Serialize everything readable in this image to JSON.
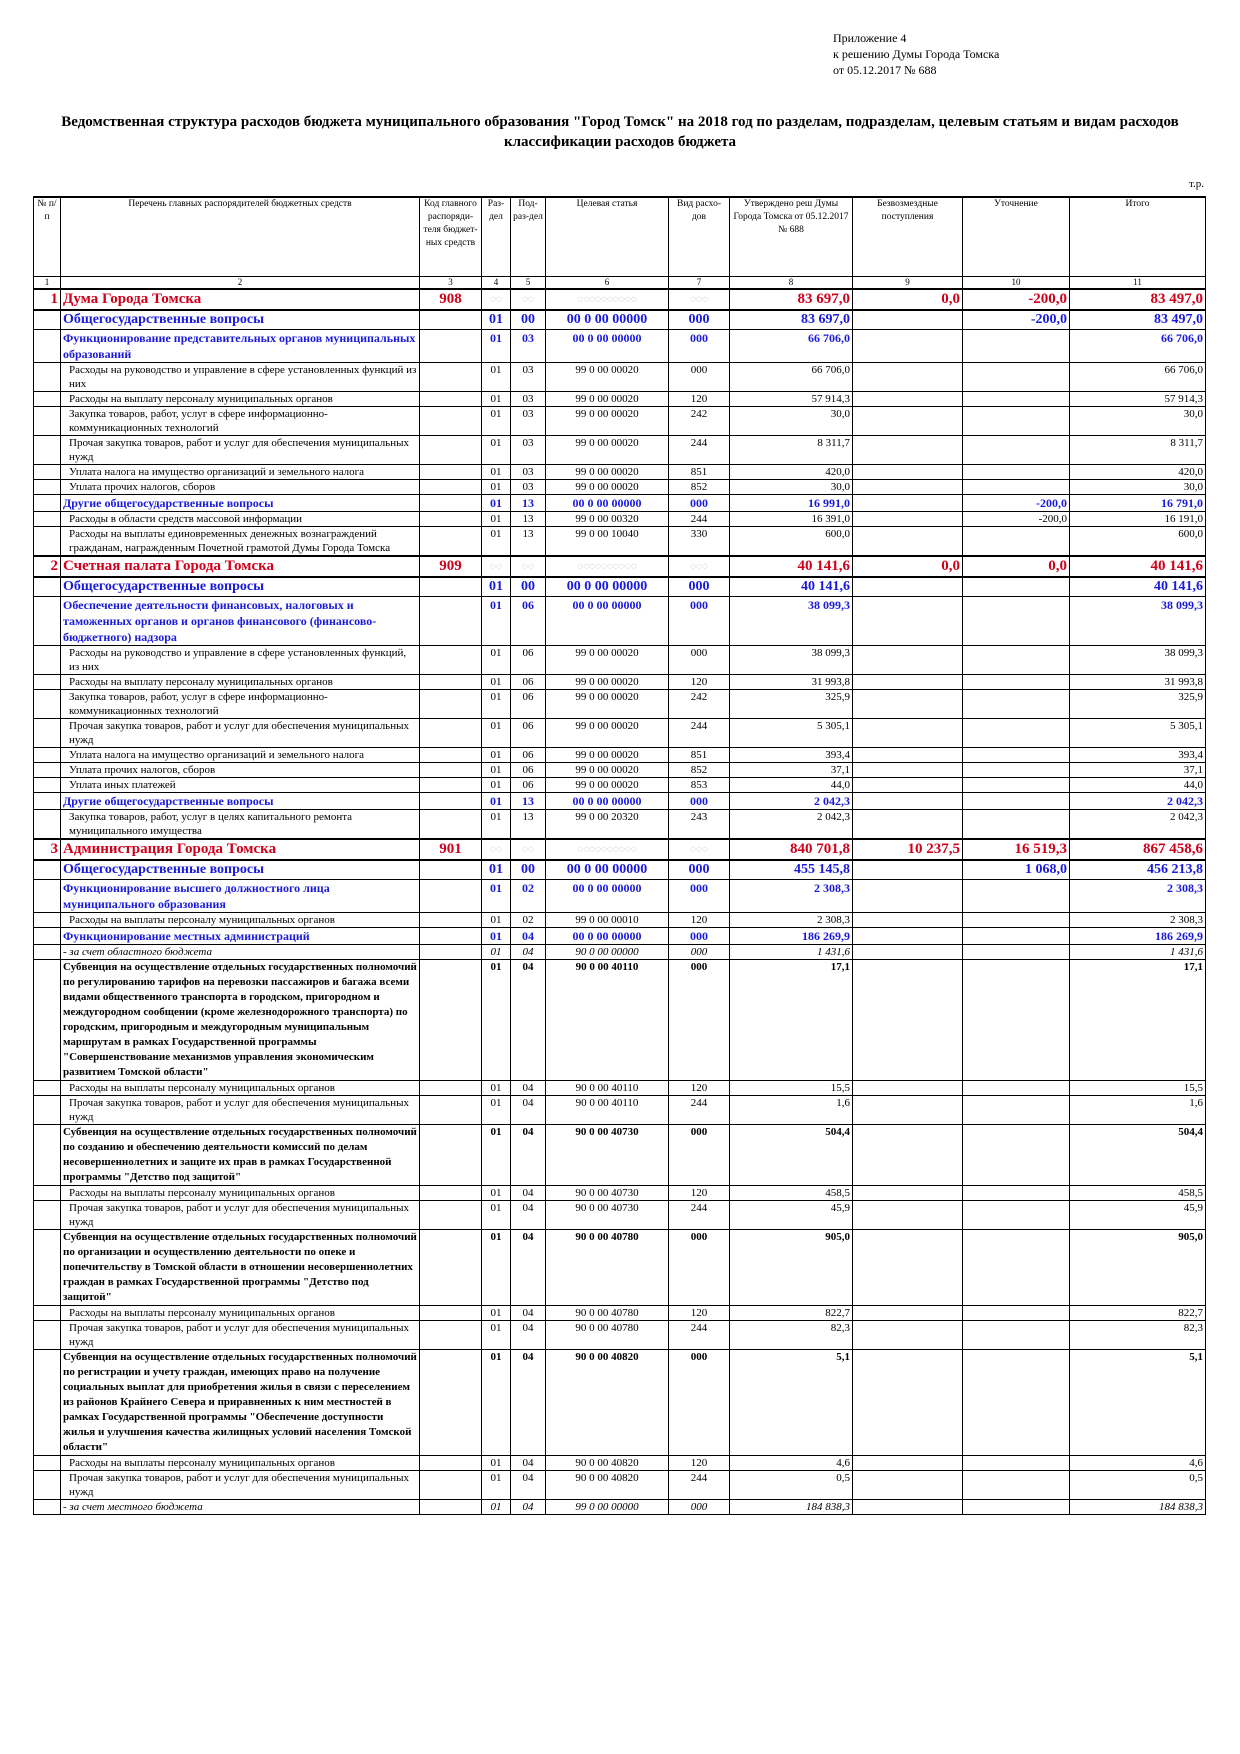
{
  "annex": {
    "line1": "Приложение 4",
    "line2": "к решению Думы Города Томска",
    "line3": "от  05.12.2017 № 688"
  },
  "title": "Ведомственная структура расходов бюджета муниципального образования \"Город Томск\" на 2018 год по разделам, подразделам, целевым статьям и видам расходов классификации расходов бюджета",
  "units": "т.р.",
  "headers": [
    "№ п/п",
    "Перечень главных распорядителей бюджетных средств",
    "Код главного распоряди-теля бюджет-ных средств",
    "Раз-дел",
    "Под-раз-дел",
    "Целевая статья",
    "Вид расхо-дов",
    "Утверждено реш Думы Города Томска от 05.12.2017 № 688",
    "Безвозмездные поступления",
    "Уточнение",
    "Итого"
  ],
  "column_numbers": [
    "1",
    "2",
    "3",
    "4",
    "5",
    "6",
    "7",
    "8",
    "9",
    "10",
    "11"
  ],
  "glyphs": {
    "rz": "◌◌",
    "cs": "◌◌◌◌◌◌◌◌◌◌",
    "vr": "◌◌◌"
  },
  "rows": [
    {
      "type": "agency",
      "no": "1",
      "name": "Дума Города Томска",
      "code": "908",
      "approved": "83 697,0",
      "free": "0,0",
      "adj": "-200,0",
      "total": "83 497,0"
    },
    {
      "type": "section",
      "name": "Общегосударственные вопросы",
      "rz": "01",
      "pr": "00",
      "cs": "00 0 00 00000",
      "vr": "000",
      "approved": "83 697,0",
      "free": "",
      "adj": "-200,0",
      "total": "83 497,0"
    },
    {
      "type": "sub",
      "name": "Функционирование представительных органов муниципальных образований",
      "rz": "01",
      "pr": "03",
      "cs": "00 0 00 00000",
      "vr": "000",
      "approved": "66 706,0",
      "free": "",
      "adj": "",
      "total": "66 706,0"
    },
    {
      "type": "plain",
      "name": "Расходы на руководство и управление в сфере установленных функций из них",
      "rz": "01",
      "pr": "03",
      "cs": "99 0 00 00020",
      "vr": "000",
      "approved": "66 706,0",
      "free": "",
      "adj": "",
      "total": "66 706,0"
    },
    {
      "type": "plain",
      "name": "Расходы на выплату персоналу муниципальных органов",
      "rz": "01",
      "pr": "03",
      "cs": "99 0 00 00020",
      "vr": "120",
      "approved": "57 914,3",
      "free": "",
      "adj": "",
      "total": "57 914,3"
    },
    {
      "type": "plain",
      "name": "Закупка товаров, работ, услуг в сфере информационно-коммуникационных технологий",
      "rz": "01",
      "pr": "03",
      "cs": "99 0 00 00020",
      "vr": "242",
      "approved": "30,0",
      "free": "",
      "adj": "",
      "total": "30,0"
    },
    {
      "type": "plain",
      "name": "Прочая закупка товаров, работ и услуг для обеспечения муниципальных нужд",
      "rz": "01",
      "pr": "03",
      "cs": "99 0 00 00020",
      "vr": "244",
      "approved": "8 311,7",
      "free": "",
      "adj": "",
      "total": "8 311,7"
    },
    {
      "type": "plain",
      "name": "Уплата налога на имущество организаций и земельного налога",
      "rz": "01",
      "pr": "03",
      "cs": "99 0 00 00020",
      "vr": "851",
      "approved": "420,0",
      "free": "",
      "adj": "",
      "total": "420,0"
    },
    {
      "type": "plain",
      "name": "Уплата прочих налогов, сборов",
      "rz": "01",
      "pr": "03",
      "cs": "99 0 00 00020",
      "vr": "852",
      "approved": "30,0",
      "free": "",
      "adj": "",
      "total": "30,0"
    },
    {
      "type": "sub",
      "name": "Другие общегосударственные вопросы",
      "rz": "01",
      "pr": "13",
      "cs": "00 0 00 00000",
      "vr": "000",
      "approved": "16 991,0",
      "free": "",
      "adj": "-200,0",
      "total": "16 791,0"
    },
    {
      "type": "plain",
      "name": "Расходы в области средств массовой информации",
      "rz": "01",
      "pr": "13",
      "cs": "99 0 00 00320",
      "vr": "244",
      "approved": "16 391,0",
      "free": "",
      "adj": "-200,0",
      "total": "16 191,0"
    },
    {
      "type": "plain",
      "name": "Расходы на выплаты единовременных денежных вознаграждений гражданам, награжденным Почетной грамотой Думы Города Томска",
      "rz": "01",
      "pr": "13",
      "cs": "99 0 00 10040",
      "vr": "330",
      "approved": "600,0",
      "free": "",
      "adj": "",
      "total": "600,0"
    },
    {
      "type": "agency",
      "no": "2",
      "name": "Счетная палата Города Томска",
      "code": "909",
      "approved": "40 141,6",
      "free": "0,0",
      "adj": "0,0",
      "total": "40 141,6"
    },
    {
      "type": "section",
      "name": "Общегосударственные вопросы",
      "rz": "01",
      "pr": "00",
      "cs": "00 0 00 00000",
      "vr": "000",
      "approved": "40 141,6",
      "free": "",
      "adj": "",
      "total": "40 141,6"
    },
    {
      "type": "sub",
      "name": "Обеспечение деятельности финансовых, налоговых и таможенных органов и органов финансового (финансово-бюджетного) надзора",
      "rz": "01",
      "pr": "06",
      "cs": "00 0 00 00000",
      "vr": "000",
      "approved": "38 099,3",
      "free": "",
      "adj": "",
      "total": "38 099,3"
    },
    {
      "type": "plain",
      "name": "Расходы на руководство и управление в сфере установленных функций, из них",
      "rz": "01",
      "pr": "06",
      "cs": "99 0 00 00020",
      "vr": "000",
      "approved": "38 099,3",
      "free": "",
      "adj": "",
      "total": "38 099,3"
    },
    {
      "type": "plain",
      "name": "Расходы на выплату персоналу муниципальных органов",
      "rz": "01",
      "pr": "06",
      "cs": "99 0 00 00020",
      "vr": "120",
      "approved": "31 993,8",
      "free": "",
      "adj": "",
      "total": "31 993,8"
    },
    {
      "type": "plain",
      "name": "Закупка товаров, работ, услуг в сфере информационно-коммуникационных технологий",
      "rz": "01",
      "pr": "06",
      "cs": "99 0 00 00020",
      "vr": "242",
      "approved": "325,9",
      "free": "",
      "adj": "",
      "total": "325,9"
    },
    {
      "type": "plain",
      "name": "Прочая закупка товаров, работ и услуг для обеспечения муниципальных нужд",
      "rz": "01",
      "pr": "06",
      "cs": "99 0 00 00020",
      "vr": "244",
      "approved": "5 305,1",
      "free": "",
      "adj": "",
      "total": "5 305,1"
    },
    {
      "type": "plain",
      "name": "Уплата налога на имущество организаций и земельного налога",
      "rz": "01",
      "pr": "06",
      "cs": "99 0 00 00020",
      "vr": "851",
      "approved": "393,4",
      "free": "",
      "adj": "",
      "total": "393,4"
    },
    {
      "type": "plain",
      "name": "Уплата прочих налогов, сборов",
      "rz": "01",
      "pr": "06",
      "cs": "99 0 00 00020",
      "vr": "852",
      "approved": "37,1",
      "free": "",
      "adj": "",
      "total": "37,1"
    },
    {
      "type": "plain",
      "name": "Уплата иных платежей",
      "rz": "01",
      "pr": "06",
      "cs": "99 0 00 00020",
      "vr": "853",
      "approved": "44,0",
      "free": "",
      "adj": "",
      "total": "44,0"
    },
    {
      "type": "sub",
      "name": "Другие общегосударственные вопросы",
      "rz": "01",
      "pr": "13",
      "cs": "00 0 00 00000",
      "vr": "000",
      "approved": "2 042,3",
      "free": "",
      "adj": "",
      "total": "2 042,3"
    },
    {
      "type": "plain",
      "name": "Закупка товаров, работ, услуг в целях капитального ремонта муниципального имущества",
      "rz": "01",
      "pr": "13",
      "cs": "99 0 00 20320",
      "vr": "243",
      "approved": "2 042,3",
      "free": "",
      "adj": "",
      "total": "2 042,3"
    },
    {
      "type": "agency",
      "no": "3",
      "name": "Администрация Города Томска",
      "code": "901",
      "approved": "840 701,8",
      "free": "10 237,5",
      "adj": "16 519,3",
      "total": "867 458,6"
    },
    {
      "type": "section",
      "name": "Общегосударственные вопросы",
      "rz": "01",
      "pr": "00",
      "cs": "00 0 00 00000",
      "vr": "000",
      "approved": "455 145,8",
      "free": "",
      "adj": "1 068,0",
      "total": "456 213,8"
    },
    {
      "type": "sub",
      "name": "Функционирование высшего должностного лица муниципального образования",
      "rz": "01",
      "pr": "02",
      "cs": "00 0 00 00000",
      "vr": "000",
      "approved": "2 308,3",
      "free": "",
      "adj": "",
      "total": "2 308,3"
    },
    {
      "type": "plain",
      "name": "Расходы на выплаты персоналу муниципальных органов",
      "rz": "01",
      "pr": "02",
      "cs": "99 0 00 00010",
      "vr": "120",
      "approved": "2 308,3",
      "free": "",
      "adj": "",
      "total": "2 308,3"
    },
    {
      "type": "sub",
      "name": "Функционирование местных администраций",
      "rz": "01",
      "pr": "04",
      "cs": "00 0 00 00000",
      "vr": "000",
      "approved": "186 269,9",
      "free": "",
      "adj": "",
      "total": "186 269,9"
    },
    {
      "type": "ital",
      "name": "- за счет областного бюджета",
      "rz": "01",
      "pr": "04",
      "cs": "90 0 00 00000",
      "vr": "000",
      "approved": "1 431,6",
      "free": "",
      "adj": "",
      "total": "1 431,6"
    },
    {
      "type": "bold",
      "name": "Субвенция на осуществление отдельных государственных полномочий по регулированию тарифов на перевозки пассажиров и багажа всеми видами общественного транспорта в городском, пригородном и междугородном сообщении (кроме железнодорожного транспорта) по городским, пригородным и междугородным муниципальным маршрутам в рамках Государственной программы \"Совершенствование механизмов управления экономическим развитием Томской области\"",
      "rz": "01",
      "pr": "04",
      "cs": "90 0 00 40110",
      "vr": "000",
      "approved": "17,1",
      "free": "",
      "adj": "",
      "total": "17,1"
    },
    {
      "type": "plain",
      "name": "Расходы на выплаты персоналу муниципальных органов",
      "rz": "01",
      "pr": "04",
      "cs": "90 0 00 40110",
      "vr": "120",
      "approved": "15,5",
      "free": "",
      "adj": "",
      "total": "15,5"
    },
    {
      "type": "plain",
      "name": "Прочая закупка товаров, работ и услуг для обеспечения муниципальных нужд",
      "rz": "01",
      "pr": "04",
      "cs": "90 0 00 40110",
      "vr": "244",
      "approved": "1,6",
      "free": "",
      "adj": "",
      "total": "1,6"
    },
    {
      "type": "bold",
      "name": "Субвенция на осуществление отдельных государственных полномочий по созданию и обеспечению деятельности комиссий по делам несовершеннолетних и защите их прав в рамках Государственной программы \"Детство под защитой\"",
      "rz": "01",
      "pr": "04",
      "cs": "90 0 00 40730",
      "vr": "000",
      "approved": "504,4",
      "free": "",
      "adj": "",
      "total": "504,4"
    },
    {
      "type": "plain",
      "name": "Расходы на выплаты персоналу муниципальных органов",
      "rz": "01",
      "pr": "04",
      "cs": "90 0 00 40730",
      "vr": "120",
      "approved": "458,5",
      "free": "",
      "adj": "",
      "total": "458,5"
    },
    {
      "type": "plain",
      "name": "Прочая закупка товаров, работ и услуг для обеспечения муниципальных нужд",
      "rz": "01",
      "pr": "04",
      "cs": "90 0 00 40730",
      "vr": "244",
      "approved": "45,9",
      "free": "",
      "adj": "",
      "total": "45,9"
    },
    {
      "type": "bold",
      "name": "Субвенция на осуществление отдельных государственных полномочий по организации и осуществлению деятельности по опеке и попечительству в Томской области в отношении несовершеннолетних граждан в рамках Государственной программы \"Детство под защитой\"",
      "rz": "01",
      "pr": "04",
      "cs": "90 0 00 40780",
      "vr": "000",
      "approved": "905,0",
      "free": "",
      "adj": "",
      "total": "905,0"
    },
    {
      "type": "plain",
      "name": "Расходы на выплаты персоналу муниципальных органов",
      "rz": "01",
      "pr": "04",
      "cs": "90 0 00 40780",
      "vr": "120",
      "approved": "822,7",
      "free": "",
      "adj": "",
      "total": "822,7"
    },
    {
      "type": "plain",
      "name": "Прочая закупка товаров, работ и услуг для обеспечения муниципальных нужд",
      "rz": "01",
      "pr": "04",
      "cs": "90 0 00 40780",
      "vr": "244",
      "approved": "82,3",
      "free": "",
      "adj": "",
      "total": "82,3"
    },
    {
      "type": "bold",
      "name": "Субвенция на осуществление отдельных государственных полномочий по регистрации и учету граждан, имеющих право на получение социальных выплат для приобретения жилья в связи с переселением из районов Крайнего Севера и приравненных к ним местностей в рамках Государственной программы \"Обеспечение доступности жилья и улучшения качества жилищных условий населения Томской области\"",
      "rz": "01",
      "pr": "04",
      "cs": "90 0 00 40820",
      "vr": "000",
      "approved": "5,1",
      "free": "",
      "adj": "",
      "total": "5,1"
    },
    {
      "type": "plain",
      "name": "Расходы на выплаты персоналу муниципальных органов",
      "rz": "01",
      "pr": "04",
      "cs": "90 0 00 40820",
      "vr": "120",
      "approved": "4,6",
      "free": "",
      "adj": "",
      "total": "4,6"
    },
    {
      "type": "plain",
      "name": "Прочая закупка товаров, работ и услуг для обеспечения муниципальных нужд",
      "rz": "01",
      "pr": "04",
      "cs": "90 0 00 40820",
      "vr": "244",
      "approved": "0,5",
      "free": "",
      "adj": "",
      "total": "0,5"
    },
    {
      "type": "ital",
      "name": "- за счет местного бюджета",
      "rz": "01",
      "pr": "04",
      "cs": "99 0 00 00000",
      "vr": "000",
      "approved": "184 838,3",
      "free": "",
      "adj": "",
      "total": "184 838,3"
    }
  ]
}
